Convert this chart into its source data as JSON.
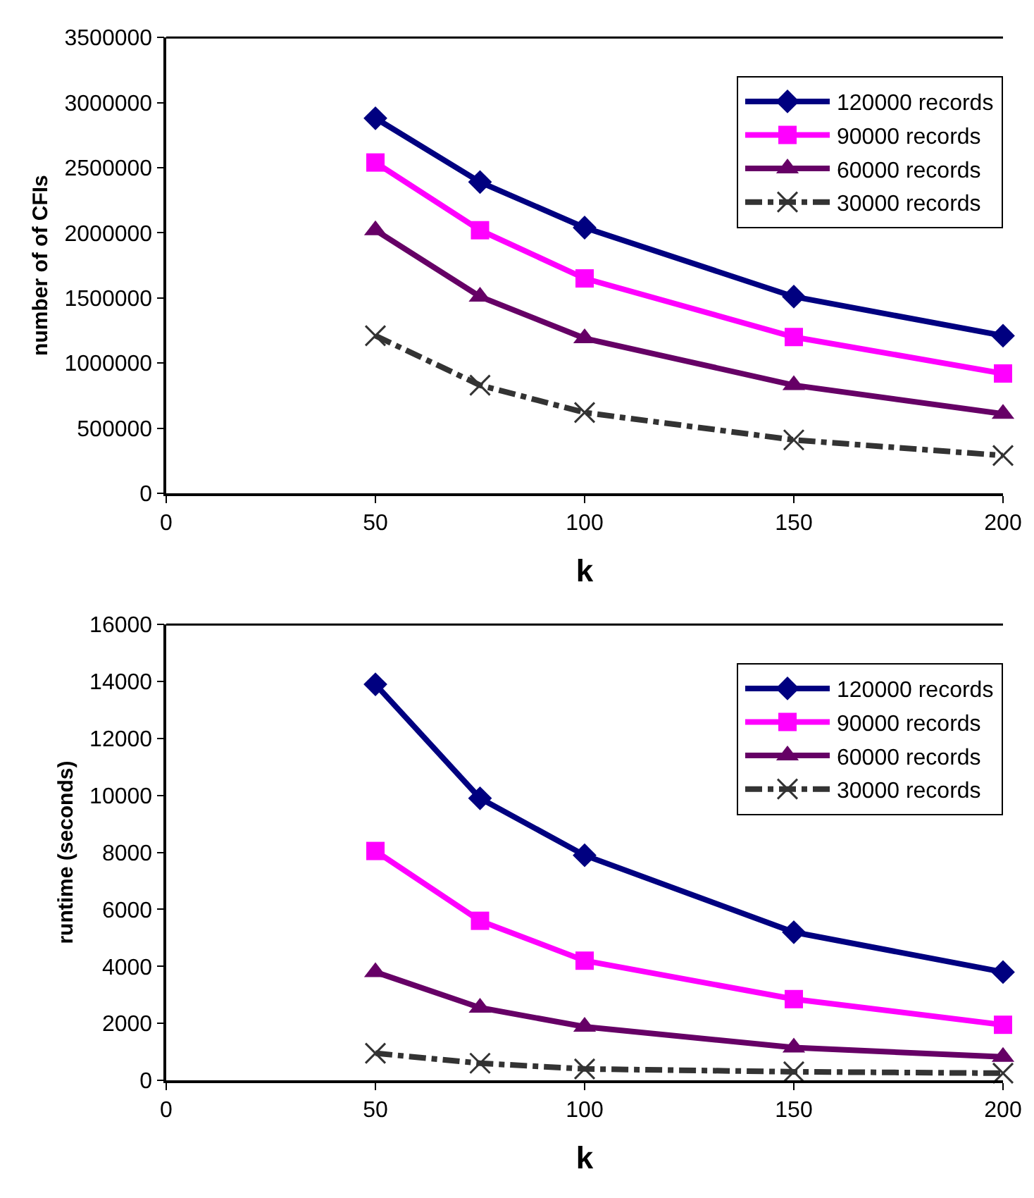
{
  "chart_data": [
    {
      "type": "line",
      "xlabel": "k",
      "ylabel": "number of of CFIs",
      "x": [
        50,
        75,
        100,
        150,
        200
      ],
      "xlim": [
        0,
        200
      ],
      "xticks": [
        0,
        50,
        100,
        150,
        200
      ],
      "ylim": [
        0,
        3500000
      ],
      "yticks": [
        0,
        500000,
        1000000,
        1500000,
        2000000,
        2500000,
        3000000,
        3500000
      ],
      "legend": "top right",
      "series": [
        {
          "name": "120000 records",
          "color": "#000080",
          "marker": "diamond",
          "line_style": "solid",
          "values": [
            2880000,
            2390000,
            2040000,
            1510000,
            1210000
          ]
        },
        {
          "name": "90000 records",
          "color": "#ff00ff",
          "marker": "square",
          "line_style": "solid",
          "values": [
            2540000,
            2020000,
            1650000,
            1200000,
            920000
          ]
        },
        {
          "name": "60000 records",
          "color": "#660066",
          "marker": "triangle",
          "line_style": "solid",
          "values": [
            2020000,
            1510000,
            1190000,
            830000,
            610000
          ]
        },
        {
          "name": "30000 records",
          "color": "#333333",
          "marker": "cross",
          "line_style": "dashed",
          "values": [
            1210000,
            830000,
            620000,
            410000,
            290000
          ]
        }
      ]
    },
    {
      "type": "line",
      "xlabel": "k",
      "ylabel": "runtime (seconds)",
      "x": [
        50,
        75,
        100,
        150,
        200
      ],
      "xlim": [
        0,
        200
      ],
      "xticks": [
        0,
        50,
        100,
        150,
        200
      ],
      "ylim": [
        0,
        16000
      ],
      "yticks": [
        0,
        2000,
        4000,
        6000,
        8000,
        10000,
        12000,
        14000,
        16000
      ],
      "legend": "top right",
      "series": [
        {
          "name": "120000 records",
          "color": "#000080",
          "marker": "diamond",
          "line_style": "solid",
          "values": [
            13900,
            9900,
            7900,
            5200,
            3800
          ]
        },
        {
          "name": "90000 records",
          "color": "#ff00ff",
          "marker": "square",
          "line_style": "solid",
          "values": [
            8050,
            5600,
            4200,
            2850,
            1950
          ]
        },
        {
          "name": "60000 records",
          "color": "#660066",
          "marker": "triangle",
          "line_style": "solid",
          "values": [
            3800,
            2550,
            1880,
            1150,
            820
          ]
        },
        {
          "name": "30000 records",
          "color": "#333333",
          "marker": "cross",
          "line_style": "dashed",
          "values": [
            950,
            600,
            400,
            300,
            250
          ]
        }
      ]
    }
  ]
}
